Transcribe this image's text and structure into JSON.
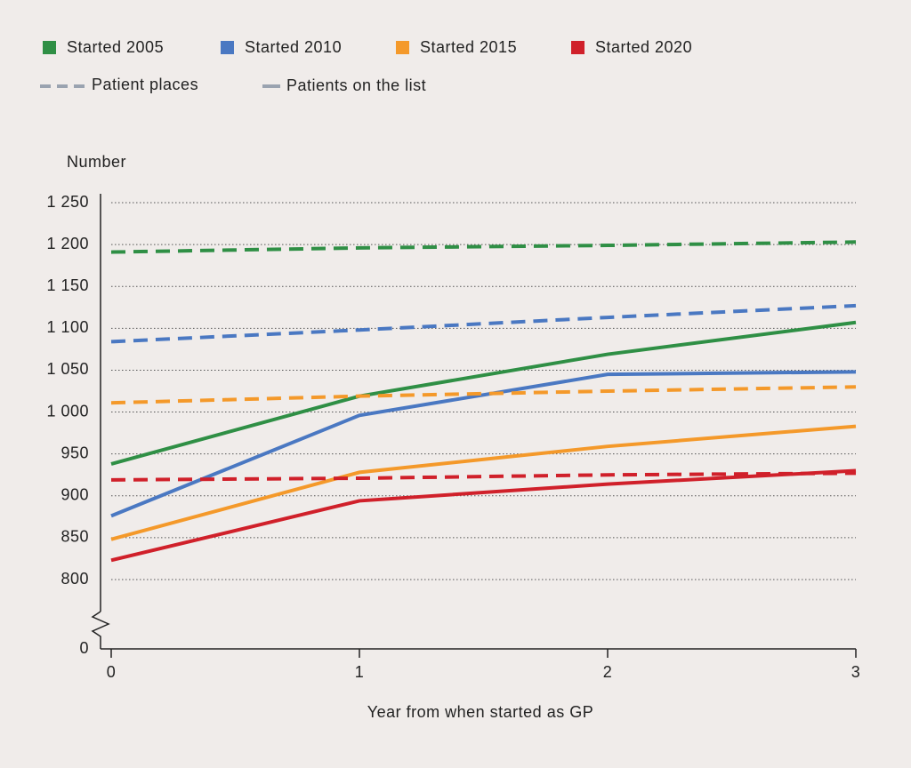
{
  "chart_data": {
    "type": "line",
    "y_label": "Number",
    "x_label": "Year from when started as GP",
    "x": [
      0,
      1,
      2,
      3
    ],
    "xlim": [
      0,
      3
    ],
    "xticks": [
      0,
      1,
      2,
      3
    ],
    "ylim": [
      0,
      1250
    ],
    "axis_break": {
      "from": 0,
      "to": 800
    },
    "yticks": [
      0,
      800,
      850,
      900,
      950,
      {
        "value": 1000,
        "label": "1 000"
      },
      {
        "value": 1050,
        "label": "1 050"
      },
      {
        "value": 1100,
        "label": "1 100"
      },
      {
        "value": 1150,
        "label": "1 150"
      },
      {
        "value": 1200,
        "label": "1 200"
      },
      {
        "value": 1250,
        "label": "1 250"
      }
    ],
    "grid": true,
    "line_styles": {
      "dashed": "Patient places",
      "solid": "Patients on the list"
    },
    "series": [
      {
        "name": "Started 2005",
        "color": "#2f8f45",
        "values": [
          938,
          1019,
          1069,
          1107
        ],
        "places": [
          1191,
          1196,
          1199,
          1203
        ]
      },
      {
        "name": "Started 2010",
        "color": "#4a78c2",
        "values": [
          876,
          996,
          1045,
          1048
        ],
        "places": [
          1084,
          1098,
          1113,
          1127
        ]
      },
      {
        "name": "Started 2015",
        "color": "#f4992a",
        "values": [
          848,
          928,
          959,
          983
        ],
        "places": [
          1011,
          1019,
          1025,
          1030
        ]
      },
      {
        "name": "Started 2020",
        "color": "#d0202a",
        "values": [
          823,
          894,
          914,
          930
        ],
        "places": [
          919,
          921,
          925,
          927
        ]
      }
    ]
  }
}
